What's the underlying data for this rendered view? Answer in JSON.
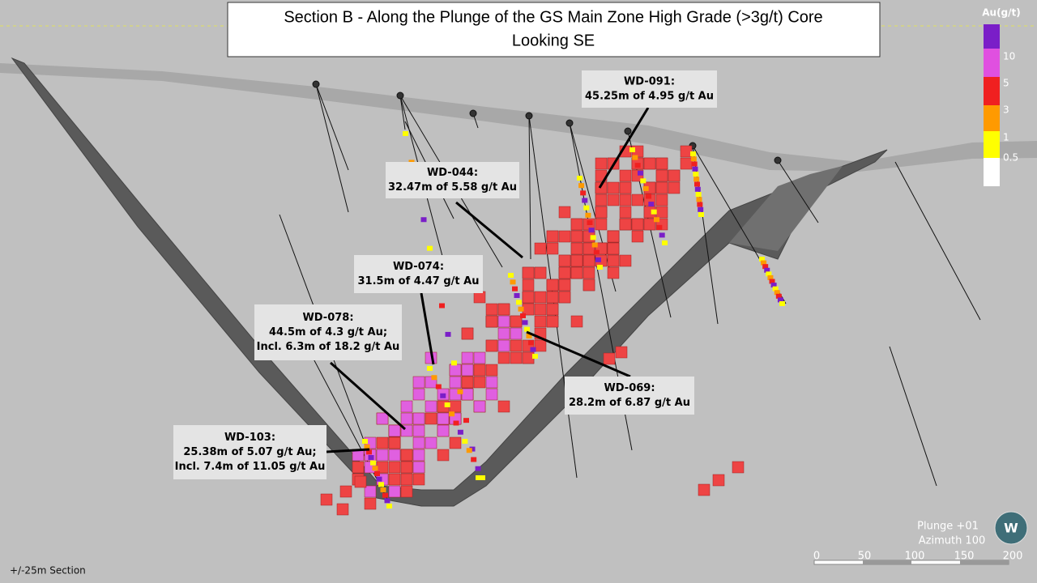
{
  "title": [
    "Section B - Along the Plunge of the GS Main Zone High Grade (>3g/t) Core",
    "Looking SE"
  ],
  "legend": {
    "title": "Au(g/t)",
    "labels": [
      "10",
      "5",
      "3",
      "1",
      "0.5"
    ]
  },
  "callouts": [
    {
      "hole": "WD-091:",
      "lines": [
        "45.25m of 4.95 g/t Au"
      ]
    },
    {
      "hole": "WD-044:",
      "lines": [
        "32.47m of 5.58 g/t Au"
      ]
    },
    {
      "hole": "WD-074:",
      "lines": [
        "31.5m of 4.47 g/t Au"
      ]
    },
    {
      "hole": "WD-078:",
      "lines": [
        "44.5m of 4.3 g/t Au;",
        "Incl. 6.3m of 18.2 g/t Au"
      ]
    },
    {
      "hole": "WD-103:",
      "lines": [
        "25.38m of 5.07 g/t Au;",
        "Incl. 7.4m of 11.05 g/t Au"
      ]
    },
    {
      "hole": "WD-069:",
      "lines": [
        "28.2m of 6.87 g/t Au"
      ]
    }
  ],
  "view": {
    "plunge": "Plunge +01",
    "azimuth": "Azimuth 100"
  },
  "scale_bar": {
    "labels": [
      "0",
      "50",
      "100",
      "150",
      "200"
    ]
  },
  "section_note": "+/-25m Section"
}
